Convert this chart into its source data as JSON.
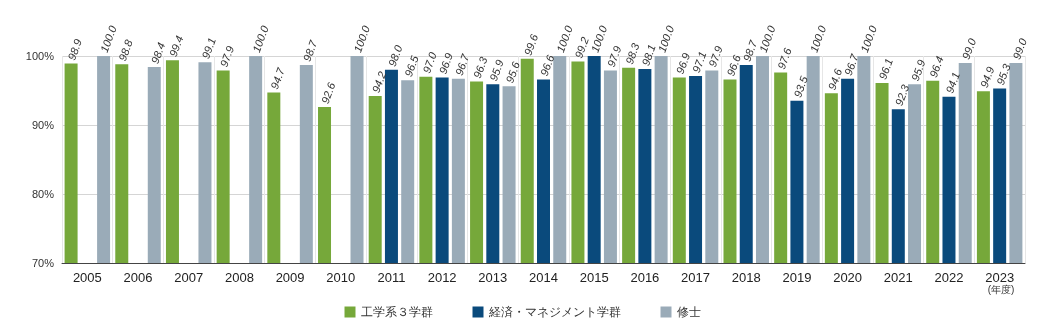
{
  "chart_data": {
    "type": "bar",
    "categories": [
      "2005",
      "2006",
      "2007",
      "2008",
      "2009",
      "2010",
      "2011",
      "2012",
      "2013",
      "2014",
      "2015",
      "2016",
      "2017",
      "2018",
      "2019",
      "2020",
      "2021",
      "2022",
      "2023"
    ],
    "series": [
      {
        "name": "工学系３学群",
        "color": "#76a83a",
        "values": [
          98.9,
          98.8,
          99.4,
          97.9,
          94.7,
          92.6,
          94.2,
          97.0,
          96.3,
          99.6,
          99.2,
          98.3,
          96.9,
          96.6,
          97.6,
          94.6,
          96.1,
          96.4,
          94.9
        ],
        "value_labels": [
          "98.9",
          "98.8",
          "99.4",
          "97.9",
          "94.7",
          "92.6",
          "94.2",
          "97.0",
          "96.3",
          "99.6",
          "99.2",
          "98.3",
          "96.9",
          "96.6",
          "97.6",
          "94.6",
          "96.1",
          "96.4",
          "94.9"
        ]
      },
      {
        "name": "経済・マネジメント学群",
        "color": "#0a4a7c",
        "values": [
          null,
          null,
          null,
          null,
          null,
          null,
          98.0,
          96.9,
          95.9,
          96.6,
          100.0,
          98.1,
          97.1,
          98.7,
          93.5,
          96.7,
          92.3,
          94.1,
          95.3
        ],
        "value_labels": [
          null,
          null,
          null,
          null,
          null,
          null,
          "98.0",
          "96.9",
          "95.9",
          "96.6",
          "100.0",
          "98.1",
          "97.1",
          "98.7",
          "93.5",
          "96.7",
          "92.3",
          "94.1",
          "95.3"
        ]
      },
      {
        "name": "修士",
        "color": "#9aabb8",
        "values": [
          100.0,
          98.4,
          99.1,
          100.0,
          98.7,
          100.0,
          96.5,
          96.7,
          95.6,
          100.0,
          97.9,
          100.0,
          97.9,
          100.0,
          100.0,
          100.0,
          95.9,
          99.0,
          99.0
        ],
        "value_labels": [
          "100.0",
          "98.4",
          "99.1",
          "100.0",
          "98.7",
          "100.0",
          "96.5",
          "96.7",
          "95.6",
          "100.0",
          "97.9",
          "100.0",
          "97.9",
          "100.0",
          "100.0",
          "100.0",
          "95.9",
          "99.0",
          "99.0"
        ]
      }
    ],
    "ylim": [
      70,
      100
    ],
    "yticks": [
      {
        "value": 70,
        "label": "70%"
      },
      {
        "value": 80,
        "label": "80%"
      },
      {
        "value": 90,
        "label": "90%"
      },
      {
        "value": 100,
        "label": "100%"
      }
    ],
    "grid": true,
    "legend": "bottom",
    "annotations": [
      "(年度)"
    ]
  }
}
